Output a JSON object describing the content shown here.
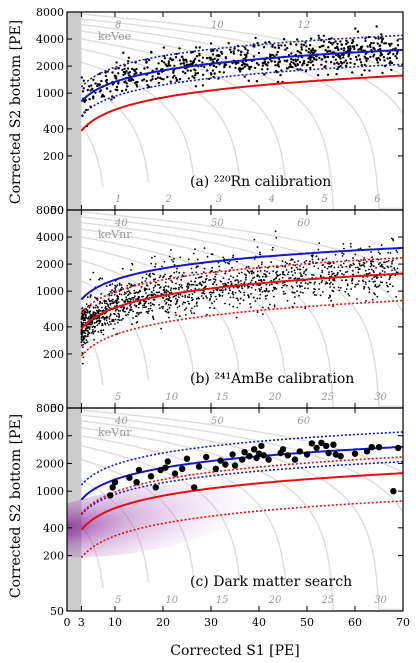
{
  "figure": {
    "xlabel": "Corrected S1 [PE]",
    "ylabel_top": "Corrected S2 bottom [PE]",
    "ylabel_bottom": "Corrected S2 bottom [PE]",
    "x_ticks": [
      "0",
      "3",
      "10",
      "20",
      "30",
      "40",
      "50",
      "60",
      "70"
    ]
  },
  "chart_data": [
    {
      "type": "scatter",
      "panel_label": "(a) ²²⁰Rn calibration",
      "xlim": [
        0,
        70
      ],
      "ylim": [
        50,
        8000
      ],
      "yscale": "log",
      "y_ticks": [
        "8000",
        "4000",
        "2000",
        "1000",
        "400",
        "200",
        "50"
      ],
      "energy_unit_label": "keVee",
      "energy_contour_labels_top": [
        "8",
        "10",
        "12"
      ],
      "energy_contour_labels_bottom": [
        "1",
        "2",
        "3",
        "4",
        "5",
        "6"
      ],
      "band_colors": {
        "median": "#1515d0",
        "quantile": "#1515d0",
        "nr_median": "#e01010"
      },
      "marker": "small-dot",
      "point_color": "#000000",
      "description_counts": "approximately 700 events, electron recoil band"
    },
    {
      "type": "scatter",
      "panel_label": "(b) ²⁴¹AmBe calibration",
      "xlim": [
        0,
        70
      ],
      "ylim": [
        50,
        8000
      ],
      "yscale": "log",
      "y_ticks": [
        "8000",
        "4000",
        "2000",
        "1000",
        "400",
        "200",
        "50"
      ],
      "energy_unit_label": "keVnr",
      "energy_contour_labels_top": [
        "40",
        "50",
        "60"
      ],
      "energy_contour_labels_bottom": [
        "5",
        "10",
        "15",
        "20",
        "25",
        "30"
      ],
      "band_colors": {
        "er_median": "#1515d0",
        "median": "#e01010",
        "quantile": "#e01010"
      },
      "marker": "small-dot",
      "point_color": "#000000"
    },
    {
      "type": "scatter",
      "panel_label": "(c) Dark matter search",
      "xlim": [
        0,
        70
      ],
      "ylim": [
        50,
        8000
      ],
      "yscale": "log",
      "y_ticks": [
        "8000",
        "4000",
        "2000",
        "1000",
        "400",
        "200",
        "50"
      ],
      "energy_unit_label": "keVnr",
      "energy_contour_labels_top": [
        "40",
        "50",
        "60"
      ],
      "energy_contour_labels_bottom": [
        "5",
        "10",
        "15",
        "20",
        "25",
        "30"
      ],
      "band_colors": {
        "er_median": "#1515d0",
        "er_quantile": "#1515d0",
        "nr_median": "#e01010",
        "nr_quantile": "#e01010",
        "signal_density": "#8a1a9a"
      },
      "marker": "large-dot",
      "point_color": "#000000",
      "points": [
        [
          9.5,
          1100
        ],
        [
          9.0,
          900
        ],
        [
          10.0,
          1250
        ],
        [
          13.0,
          1400
        ],
        [
          14.5,
          1250
        ],
        [
          15.0,
          1700
        ],
        [
          17.5,
          1450
        ],
        [
          18.5,
          1100
        ],
        [
          19.5,
          1700
        ],
        [
          20.5,
          1800
        ],
        [
          21.0,
          2100
        ],
        [
          22.5,
          1550
        ],
        [
          24.0,
          1750
        ],
        [
          25.0,
          2250
        ],
        [
          26.5,
          1100
        ],
        [
          27.5,
          1850
        ],
        [
          29.0,
          2350
        ],
        [
          31.0,
          1750
        ],
        [
          32.0,
          2150
        ],
        [
          33.0,
          1950
        ],
        [
          34.5,
          2500
        ],
        [
          35.0,
          1900
        ],
        [
          36.5,
          2200
        ],
        [
          37.0,
          2650
        ],
        [
          38.0,
          2400
        ],
        [
          39.0,
          2850
        ],
        [
          39.5,
          2300
        ],
        [
          40.0,
          2550
        ],
        [
          40.5,
          3100
        ],
        [
          41.0,
          2450
        ],
        [
          42.0,
          2200
        ],
        [
          44.5,
          2600
        ],
        [
          45.0,
          2850
        ],
        [
          46.0,
          2450
        ],
        [
          47.5,
          2200
        ],
        [
          48.5,
          2700
        ],
        [
          50.0,
          2500
        ],
        [
          51.0,
          3300
        ],
        [
          52.0,
          2950
        ],
        [
          53.0,
          3350
        ],
        [
          54.0,
          3100
        ],
        [
          54.5,
          2600
        ],
        [
          55.5,
          3200
        ],
        [
          56.0,
          2500
        ],
        [
          57.0,
          2400
        ],
        [
          60.0,
          2550
        ],
        [
          62.5,
          2700
        ],
        [
          63.5,
          3000
        ],
        [
          65.0,
          3000
        ],
        [
          68.0,
          1000
        ],
        [
          69.0,
          2950
        ]
      ]
    }
  ]
}
